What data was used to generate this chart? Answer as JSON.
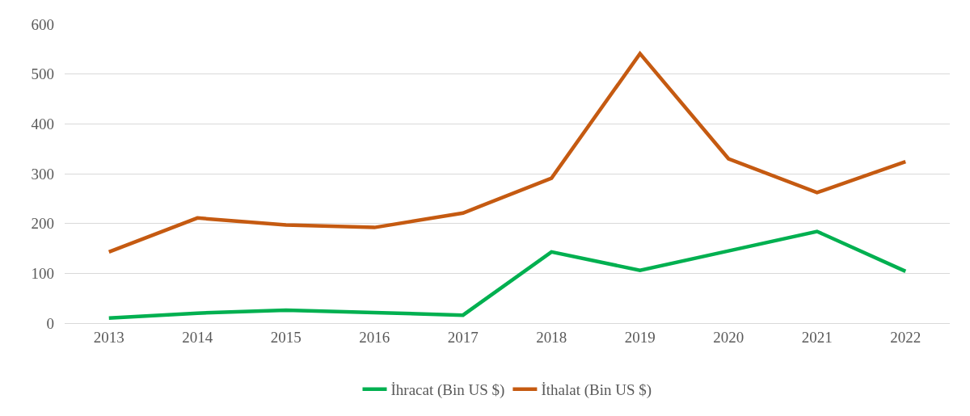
{
  "chart_data": {
    "type": "line",
    "categories": [
      "2013",
      "2014",
      "2015",
      "2016",
      "2017",
      "2018",
      "2019",
      "2020",
      "2021",
      "2022"
    ],
    "series": [
      {
        "name": "İhracat (Bin US $)",
        "color": "#00b050",
        "values": [
          10,
          20,
          26,
          21,
          16,
          143,
          106,
          145,
          184,
          104
        ]
      },
      {
        "name": "İthalat (Bin US $)",
        "color": "#c55a11",
        "values": [
          143,
          211,
          197,
          192,
          221,
          291,
          541,
          330,
          262,
          324
        ]
      }
    ],
    "ylim": [
      0,
      600
    ],
    "yticks": [
      0,
      100,
      200,
      300,
      400,
      500,
      600
    ],
    "grid": "y",
    "legend": "bottom",
    "marker": "none",
    "line_style": "solid"
  }
}
